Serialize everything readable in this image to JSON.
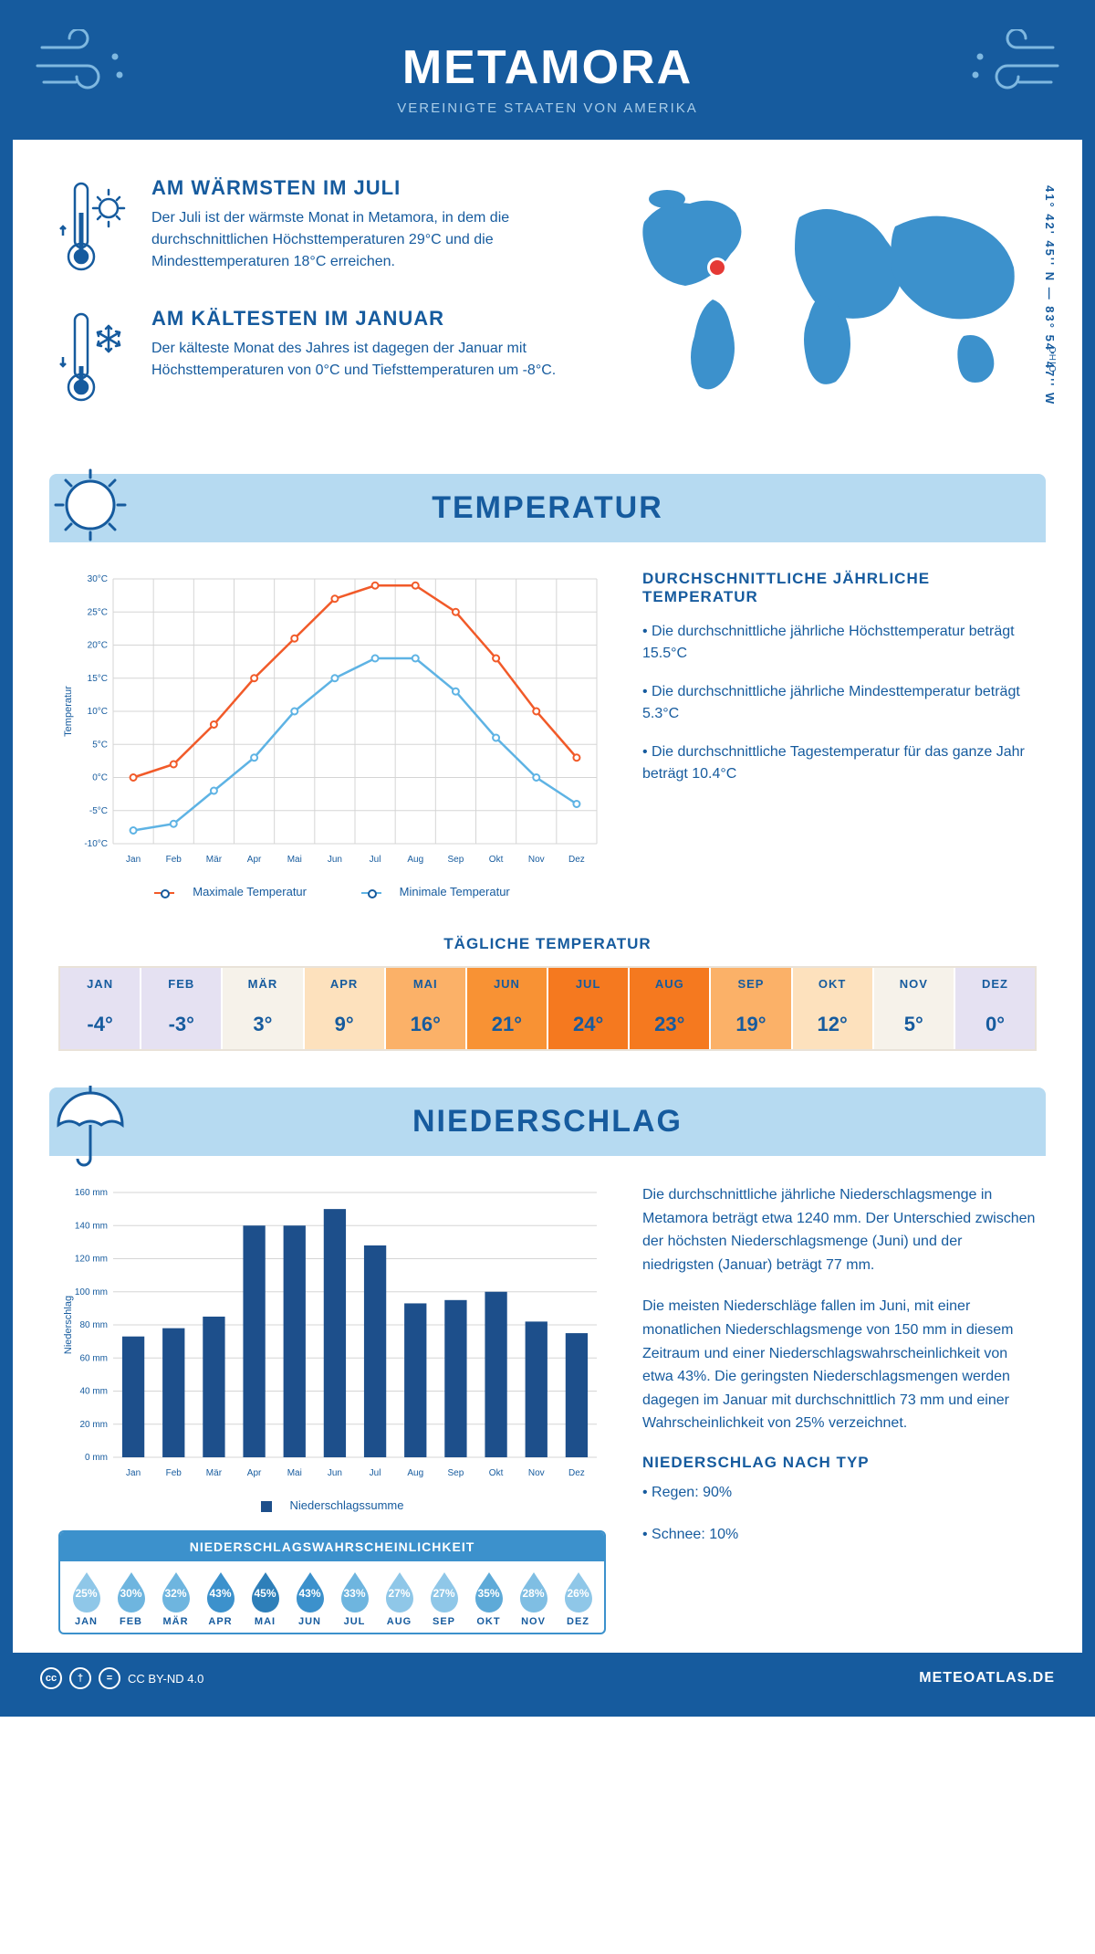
{
  "header": {
    "title": "METAMORA",
    "subtitle": "VEREINIGTE STAATEN VON AMERIKA"
  },
  "coords": "41° 42' 45'' N — 83° 54' 47'' W",
  "region": "OHIO",
  "colors": {
    "primary": "#165b9e",
    "light": "#b6daf1",
    "mid": "#3c91cc",
    "max_line": "#f15a29",
    "min_line": "#5eb3e4",
    "bar": "#1d4f8b"
  },
  "warmest": {
    "title": "AM WÄRMSTEN IM JULI",
    "text": "Der Juli ist der wärmste Monat in Metamora, in dem die durchschnittlichen Höchsttemperaturen 29°C und die Mindesttemperaturen 18°C erreichen."
  },
  "coldest": {
    "title": "AM KÄLTESTEN IM JANUAR",
    "text": "Der kälteste Monat des Jahres ist dagegen der Januar mit Höchsttemperaturen von 0°C und Tiefsttemperaturen um -8°C."
  },
  "section_temp": "TEMPERATUR",
  "section_precip": "NIEDERSCHLAG",
  "temp_chart": {
    "months": [
      "Jan",
      "Feb",
      "Mär",
      "Apr",
      "Mai",
      "Jun",
      "Jul",
      "Aug",
      "Sep",
      "Okt",
      "Nov",
      "Dez"
    ],
    "max": [
      0,
      2,
      8,
      15,
      21,
      27,
      29,
      29,
      25,
      18,
      10,
      3
    ],
    "min": [
      -8,
      -7,
      -2,
      3,
      10,
      15,
      18,
      18,
      13,
      6,
      0,
      -4
    ],
    "ylim": [
      -10,
      30
    ],
    "ytick_step": 5,
    "ylabel": "Temperatur",
    "legend_max": "Maximale Temperatur",
    "legend_min": "Minimale Temperatur"
  },
  "temp_info": {
    "title": "DURCHSCHNITTLICHE JÄHRLICHE TEMPERATUR",
    "b1": "• Die durchschnittliche jährliche Höchsttemperatur beträgt 15.5°C",
    "b2": "• Die durchschnittliche jährliche Mindesttemperatur beträgt 5.3°C",
    "b3": "• Die durchschnittliche Tagestemperatur für das ganze Jahr beträgt 10.4°C"
  },
  "daily": {
    "title": "TÄGLICHE TEMPERATUR",
    "months": [
      "JAN",
      "FEB",
      "MÄR",
      "APR",
      "MAI",
      "JUN",
      "JUL",
      "AUG",
      "SEP",
      "OKT",
      "NOV",
      "DEZ"
    ],
    "values": [
      "-4°",
      "-3°",
      "3°",
      "9°",
      "16°",
      "21°",
      "24°",
      "23°",
      "19°",
      "12°",
      "5°",
      "0°"
    ],
    "colors": [
      "#e5e1f2",
      "#e5e1f2",
      "#f6f2ea",
      "#fde1bd",
      "#fbb168",
      "#f89234",
      "#f5791f",
      "#f5791f",
      "#fbb168",
      "#fde1bd",
      "#f6f2ea",
      "#e5e1f2"
    ]
  },
  "precip_chart": {
    "months": [
      "Jan",
      "Feb",
      "Mär",
      "Apr",
      "Mai",
      "Jun",
      "Jul",
      "Aug",
      "Sep",
      "Okt",
      "Nov",
      "Dez"
    ],
    "values": [
      73,
      78,
      85,
      140,
      140,
      150,
      128,
      93,
      95,
      100,
      82,
      75
    ],
    "ylim": [
      0,
      160
    ],
    "ytick_step": 20,
    "ylabel": "Niederschlag",
    "legend": "Niederschlagssumme"
  },
  "precip_text": {
    "p1": "Die durchschnittliche jährliche Niederschlagsmenge in Metamora beträgt etwa 1240 mm. Der Unterschied zwischen der höchsten Niederschlagsmenge (Juni) und der niedrigsten (Januar) beträgt 77 mm.",
    "p2": "Die meisten Niederschläge fallen im Juni, mit einer monatlichen Niederschlagsmenge von 150 mm in diesem Zeitraum und einer Niederschlagswahrscheinlichkeit von etwa 43%. Die geringsten Niederschlagsmengen werden dagegen im Januar mit durchschnittlich 73 mm und einer Wahrscheinlichkeit von 25% verzeichnet.",
    "type_title": "NIEDERSCHLAG NACH TYP",
    "type1": "• Regen: 90%",
    "type2": "• Schnee: 10%"
  },
  "prob": {
    "title": "NIEDERSCHLAGSWAHRSCHEINLICHKEIT",
    "months": [
      "JAN",
      "FEB",
      "MÄR",
      "APR",
      "MAI",
      "JUN",
      "JUL",
      "AUG",
      "SEP",
      "OKT",
      "NOV",
      "DEZ"
    ],
    "values": [
      "25%",
      "30%",
      "32%",
      "43%",
      "45%",
      "43%",
      "33%",
      "27%",
      "27%",
      "35%",
      "28%",
      "26%"
    ],
    "colors": [
      "#8fc7e8",
      "#6eb5df",
      "#6eb5df",
      "#3c91cc",
      "#2e7fb9",
      "#3c91cc",
      "#6eb5df",
      "#8fc7e8",
      "#8fc7e8",
      "#5eaad8",
      "#7fbee3",
      "#8fc7e8"
    ]
  },
  "footer": {
    "license": "CC BY-ND 4.0",
    "brand": "METEOATLAS.DE"
  }
}
